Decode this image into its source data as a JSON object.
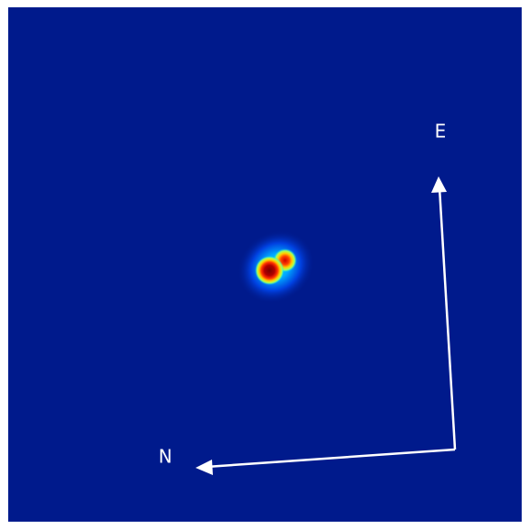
{
  "compass": {
    "east": "E",
    "north": "N"
  }
}
